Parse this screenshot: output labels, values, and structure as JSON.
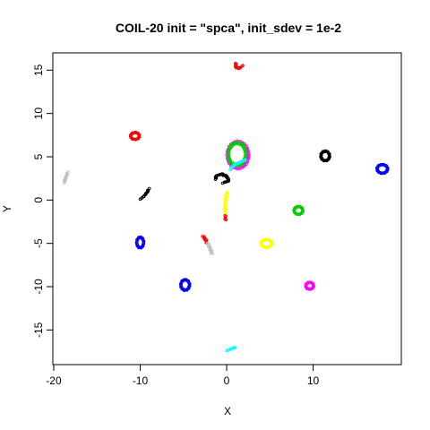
{
  "chart_data": {
    "type": "scatter",
    "title": "COIL-20 init = \"spca\", init_sdev = 1e-2",
    "xlabel": "X",
    "ylabel": "Y",
    "xlim": [
      -20.1,
      20.2
    ],
    "ylim": [
      -19.0,
      17.0
    ],
    "xticks": [
      -20,
      -10,
      0,
      10
    ],
    "yticks": [
      -15,
      -10,
      -5,
      0,
      5,
      10,
      15
    ],
    "grid": false,
    "legend": "none",
    "clusters": [
      {
        "color": "#ff0000",
        "shape": "v-shape",
        "points": [
          [
            1.0,
            15.8
          ],
          [
            1.1,
            15.4
          ],
          [
            1.3,
            15.2
          ],
          [
            1.6,
            15.3
          ],
          [
            1.8,
            15.5
          ]
        ]
      },
      {
        "color": "#ff0000",
        "shape": "loop",
        "cx": -10.6,
        "cy": 7.4,
        "rx": 0.5,
        "ry": 0.4
      },
      {
        "color": "#000000",
        "shape": "loop",
        "cx": 11.4,
        "cy": 5.1,
        "rx": 0.5,
        "ry": 0.55
      },
      {
        "color": "#0000ff",
        "shape": "loop",
        "cx": 18.0,
        "cy": 3.6,
        "rx": 0.6,
        "ry": 0.5
      },
      {
        "color": "#c0c0c0",
        "shape": "streak",
        "points": [
          [
            -18.8,
            2.0
          ],
          [
            -18.6,
            2.6
          ],
          [
            -18.4,
            3.2
          ]
        ]
      },
      {
        "color": "#000000",
        "shape": "streak",
        "points": [
          [
            -10.0,
            0.1
          ],
          [
            -9.6,
            0.4
          ],
          [
            -9.2,
            0.9
          ],
          [
            -9.0,
            1.3
          ]
        ]
      },
      {
        "color": "#ff00ff",
        "shape": "loop",
        "cx": 1.3,
        "cy": 5.2,
        "rx": 1.2,
        "ry": 1.5
      },
      {
        "color": "#00cd00",
        "shape": "loop",
        "cx": 1.2,
        "cy": 5.3,
        "rx": 1.0,
        "ry": 1.3
      },
      {
        "color": "#00ffff",
        "shape": "arc",
        "points": [
          [
            0.4,
            3.5
          ],
          [
            0.9,
            4.1
          ],
          [
            1.6,
            4.4
          ],
          [
            2.1,
            4.6
          ]
        ]
      },
      {
        "color": "#000000",
        "shape": "arc",
        "points": [
          [
            -1.3,
            2.4
          ],
          [
            -1.2,
            2.8
          ],
          [
            -0.6,
            3.0
          ],
          [
            0.1,
            2.7
          ],
          [
            0.2,
            2.2
          ],
          [
            -0.4,
            2.0
          ]
        ]
      },
      {
        "color": "#ffff00",
        "shape": "streak",
        "points": [
          [
            0.0,
            0.9
          ],
          [
            -0.1,
            -0.1
          ],
          [
            -0.2,
            -1.0
          ],
          [
            -0.1,
            -1.6
          ]
        ]
      },
      {
        "color": "#ff0000",
        "shape": "streak",
        "points": [
          [
            -0.2,
            -1.8
          ],
          [
            -0.1,
            -2.3
          ]
        ]
      },
      {
        "color": "#00cd00",
        "shape": "loop",
        "cx": 8.3,
        "cy": -1.2,
        "rx": 0.5,
        "ry": 0.45
      },
      {
        "color": "#0000ff",
        "shape": "loop",
        "cx": -10.0,
        "cy": -4.9,
        "rx": 0.4,
        "ry": 0.6
      },
      {
        "color": "#ff0000",
        "shape": "streak",
        "points": [
          [
            -2.8,
            -4.2
          ],
          [
            -2.5,
            -4.4
          ],
          [
            -2.3,
            -4.9
          ]
        ]
      },
      {
        "color": "#c0c0c0",
        "shape": "streak",
        "points": [
          [
            -2.2,
            -5.0
          ],
          [
            -1.9,
            -5.6
          ],
          [
            -1.7,
            -6.2
          ]
        ]
      },
      {
        "color": "#ffff00",
        "shape": "loop",
        "cx": 4.6,
        "cy": -5.0,
        "rx": 0.6,
        "ry": 0.45
      },
      {
        "color": "#0000ff",
        "shape": "loop",
        "cx": -4.8,
        "cy": -9.8,
        "rx": 0.5,
        "ry": 0.6
      },
      {
        "color": "#ff00ff",
        "shape": "loop",
        "cx": 9.6,
        "cy": -9.9,
        "rx": 0.45,
        "ry": 0.4
      },
      {
        "color": "#00ffff",
        "shape": "streak",
        "points": [
          [
            0.0,
            -17.4
          ],
          [
            0.5,
            -17.2
          ],
          [
            1.0,
            -17.0
          ]
        ]
      }
    ]
  }
}
